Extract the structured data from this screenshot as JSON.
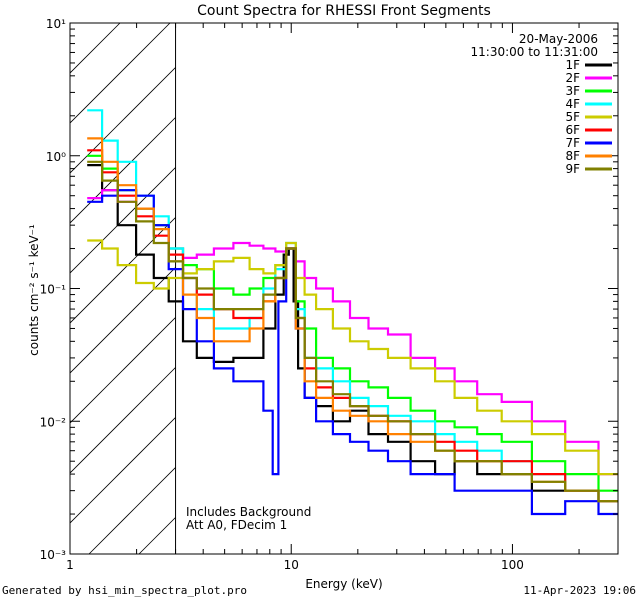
{
  "chart_data": {
    "type": "line",
    "title": "Count Spectra for RHESSI Front Segments",
    "xlabel": "Energy (keV)",
    "ylabel": "counts cm⁻² s⁻¹ keV⁻¹",
    "xscale": "log",
    "yscale": "log",
    "xlim": [
      1,
      300
    ],
    "ylim": [
      0.001,
      10
    ],
    "x_tick_labels": [
      "1",
      "10",
      "100"
    ],
    "y_tick_labels": [
      "10⁻³",
      "10⁻²",
      "10⁻¹",
      "10⁰",
      "10¹"
    ],
    "date_line": "20-May-2006",
    "time_line": "11:30:00 to 11:31:00",
    "attenuator_threshold_keV": 3,
    "annotations": [
      "Includes Background",
      "Att A0, FDecim 1"
    ],
    "legend_position": "top-right",
    "series": [
      {
        "name": "1F",
        "color": "#000000",
        "x": [
          1.3,
          1.5,
          1.8,
          2.2,
          2.6,
          3.0,
          3.5,
          4,
          5,
          6,
          7,
          8,
          9,
          9.5,
          10,
          10.5,
          11,
          12,
          14,
          17,
          20,
          25,
          30,
          40,
          50,
          60,
          80,
          100,
          150,
          200,
          300
        ],
        "y": [
          0.85,
          0.55,
          0.3,
          0.18,
          0.12,
          0.08,
          0.04,
          0.03,
          0.028,
          0.03,
          0.03,
          0.05,
          0.09,
          0.18,
          0.2,
          0.08,
          0.025,
          0.015,
          0.013,
          0.01,
          0.012,
          0.008,
          0.007,
          0.005,
          0.004,
          0.005,
          0.004,
          0.004,
          0.003,
          0.003,
          0.0025
        ]
      },
      {
        "name": "2F",
        "color": "#ff00ff",
        "x": [
          1.3,
          1.5,
          1.8,
          2.2,
          2.6,
          3.0,
          3.5,
          4,
          5,
          6,
          7,
          8,
          9,
          10,
          11,
          12,
          14,
          17,
          20,
          25,
          30,
          40,
          50,
          60,
          80,
          100,
          150,
          200,
          300
        ],
        "y": [
          0.48,
          0.55,
          0.45,
          0.4,
          0.3,
          0.2,
          0.17,
          0.18,
          0.2,
          0.22,
          0.21,
          0.2,
          0.19,
          0.2,
          0.16,
          0.12,
          0.1,
          0.08,
          0.06,
          0.05,
          0.045,
          0.03,
          0.025,
          0.02,
          0.016,
          0.014,
          0.01,
          0.007,
          0.004
        ]
      },
      {
        "name": "3F",
        "color": "#00ff00",
        "x": [
          1.3,
          1.5,
          1.8,
          2.2,
          2.6,
          3.0,
          3.5,
          4,
          5,
          6,
          7,
          8,
          9,
          10,
          11,
          12,
          14,
          17,
          20,
          25,
          30,
          40,
          50,
          60,
          80,
          100,
          150,
          200,
          300
        ],
        "y": [
          1.0,
          0.8,
          0.55,
          0.4,
          0.3,
          0.2,
          0.15,
          0.14,
          0.1,
          0.09,
          0.1,
          0.12,
          0.15,
          0.2,
          0.08,
          0.05,
          0.03,
          0.025,
          0.02,
          0.018,
          0.015,
          0.012,
          0.01,
          0.009,
          0.008,
          0.007,
          0.005,
          0.004,
          0.003
        ]
      },
      {
        "name": "4F",
        "color": "#00ffff",
        "x": [
          1.3,
          1.5,
          1.8,
          2.2,
          2.6,
          3.0,
          3.5,
          4,
          5,
          6,
          7,
          8,
          9,
          10,
          11,
          12,
          14,
          17,
          20,
          25,
          30,
          40,
          50,
          60,
          80,
          100,
          150,
          200,
          300
        ],
        "y": [
          2.2,
          1.3,
          0.9,
          0.5,
          0.35,
          0.2,
          0.12,
          0.07,
          0.05,
          0.05,
          0.06,
          0.1,
          0.14,
          0.22,
          0.07,
          0.03,
          0.025,
          0.02,
          0.015,
          0.013,
          0.011,
          0.01,
          0.008,
          0.007,
          0.006,
          0.005,
          0.004,
          0.003,
          0.0025
        ]
      },
      {
        "name": "5F",
        "color": "#cccc00",
        "x": [
          1.3,
          1.5,
          1.8,
          2.2,
          2.6,
          3.0,
          3.5,
          4,
          5,
          6,
          7,
          8,
          9,
          10,
          11,
          12,
          14,
          17,
          20,
          25,
          30,
          40,
          50,
          60,
          80,
          100,
          150,
          200,
          300
        ],
        "y": [
          0.23,
          0.2,
          0.15,
          0.11,
          0.1,
          0.12,
          0.13,
          0.14,
          0.16,
          0.17,
          0.14,
          0.13,
          0.15,
          0.22,
          0.12,
          0.09,
          0.07,
          0.05,
          0.04,
          0.035,
          0.03,
          0.025,
          0.02,
          0.015,
          0.012,
          0.01,
          0.008,
          0.006,
          0.004
        ]
      },
      {
        "name": "6F",
        "color": "#ff0000",
        "x": [
          1.3,
          1.5,
          1.8,
          2.2,
          2.6,
          3.0,
          3.5,
          4,
          5,
          6,
          7,
          8,
          9,
          10,
          11,
          12,
          14,
          17,
          20,
          25,
          30,
          40,
          50,
          60,
          80,
          100,
          150,
          200,
          300
        ],
        "y": [
          1.1,
          0.75,
          0.5,
          0.35,
          0.25,
          0.18,
          0.12,
          0.09,
          0.07,
          0.06,
          0.06,
          0.08,
          0.12,
          0.2,
          0.06,
          0.025,
          0.018,
          0.015,
          0.013,
          0.011,
          0.01,
          0.008,
          0.007,
          0.006,
          0.005,
          0.005,
          0.004,
          0.003,
          0.0025
        ]
      },
      {
        "name": "7F",
        "color": "#0000ff",
        "x": [
          1.3,
          1.5,
          1.8,
          2.2,
          2.6,
          3.0,
          3.5,
          4,
          5,
          6,
          7,
          8,
          8.5,
          9,
          10,
          11,
          12,
          14,
          17,
          20,
          25,
          30,
          40,
          50,
          60,
          80,
          100,
          150,
          200,
          300
        ],
        "y": [
          0.45,
          0.5,
          0.55,
          0.5,
          0.3,
          0.14,
          0.07,
          0.04,
          0.025,
          0.02,
          0.02,
          0.012,
          0.004,
          0.08,
          0.2,
          0.05,
          0.015,
          0.01,
          0.008,
          0.007,
          0.006,
          0.005,
          0.004,
          0.004,
          0.003,
          0.003,
          0.003,
          0.002,
          0.0025,
          0.002
        ]
      },
      {
        "name": "8F",
        "color": "#ff8000",
        "x": [
          1.3,
          1.5,
          1.8,
          2.2,
          2.6,
          3.0,
          3.5,
          4,
          5,
          6,
          7,
          8,
          9,
          10,
          11,
          12,
          14,
          17,
          20,
          25,
          30,
          40,
          50,
          60,
          80,
          100,
          150,
          200,
          300
        ],
        "y": [
          1.35,
          0.9,
          0.6,
          0.4,
          0.28,
          0.16,
          0.09,
          0.06,
          0.04,
          0.04,
          0.05,
          0.08,
          0.12,
          0.2,
          0.05,
          0.02,
          0.015,
          0.012,
          0.011,
          0.01,
          0.008,
          0.007,
          0.006,
          0.005,
          0.005,
          0.004,
          0.0035,
          0.003,
          0.0025
        ]
      },
      {
        "name": "9F",
        "color": "#808000",
        "x": [
          1.3,
          1.5,
          1.8,
          2.2,
          2.6,
          3.0,
          3.5,
          4,
          5,
          6,
          7,
          8,
          9,
          10,
          11,
          12,
          14,
          17,
          20,
          25,
          30,
          40,
          50,
          60,
          80,
          100,
          150,
          200,
          300
        ],
        "y": [
          0.9,
          0.65,
          0.45,
          0.32,
          0.22,
          0.16,
          0.12,
          0.1,
          0.07,
          0.07,
          0.07,
          0.09,
          0.12,
          0.2,
          0.06,
          0.03,
          0.02,
          0.016,
          0.013,
          0.011,
          0.01,
          0.008,
          0.006,
          0.005,
          0.005,
          0.004,
          0.0035,
          0.003,
          0.0025
        ]
      }
    ]
  },
  "footer": {
    "generated_by": "Generated by hsi_min_spectra_plot.pro",
    "timestamp": "11-Apr-2023 19:06"
  }
}
